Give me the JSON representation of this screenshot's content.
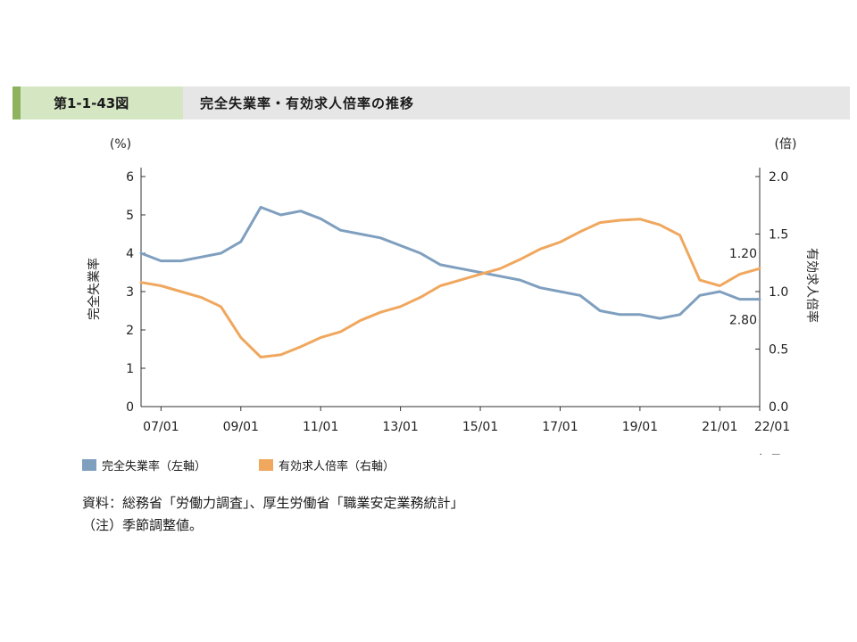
{
  "header": {
    "figure_number": "第1-1-43図",
    "title": "完全失業率・有効求人倍率の推移"
  },
  "notes": {
    "source": "資料：総務省「労働力調査」、厚生労働省「職業安定業務統計」",
    "remark": "（注）季節調整値。"
  },
  "chart_data": {
    "type": "line",
    "left_axis": {
      "unit": "(%)",
      "label": "完全失業率",
      "ticks": [
        0,
        1,
        2,
        3,
        4,
        5,
        6
      ],
      "tick_labels": [
        "0",
        "1",
        "2",
        "3",
        "4",
        "5",
        "6"
      ],
      "range": [
        0,
        6
      ]
    },
    "right_axis": {
      "unit": "(倍)",
      "label": "有効求人倍率",
      "ticks": [
        0,
        0.5,
        1,
        1.5,
        2
      ],
      "tick_labels": [
        "0.0",
        "0.5",
        "1.0",
        "1.5",
        "2.0"
      ],
      "range": [
        0,
        2
      ]
    },
    "x_axis": {
      "unit": "(年月)",
      "range": [
        "2006/07",
        "2022/01"
      ],
      "ticks": [
        "07/01",
        "09/01",
        "11/01",
        "13/01",
        "15/01",
        "17/01",
        "19/01",
        "21/01",
        "22/01"
      ]
    },
    "grid": false,
    "legend_position": "bottom-left",
    "series": [
      {
        "name": "完全失業率（左軸）",
        "axis": "left",
        "color": "#7f9fbf",
        "end_label": "2.80",
        "x": [
          "2006/07",
          "2007/01",
          "2007/07",
          "2008/01",
          "2008/07",
          "2009/01",
          "2009/07",
          "2010/01",
          "2010/07",
          "2011/01",
          "2011/07",
          "2012/01",
          "2012/07",
          "2013/01",
          "2013/07",
          "2014/01",
          "2014/07",
          "2015/01",
          "2015/07",
          "2016/01",
          "2016/07",
          "2017/01",
          "2017/07",
          "2018/01",
          "2018/07",
          "2019/01",
          "2019/07",
          "2020/01",
          "2020/07",
          "2021/01",
          "2021/07",
          "2022/01"
        ],
        "values": [
          4.0,
          3.8,
          3.8,
          3.9,
          4.0,
          4.3,
          5.2,
          5.0,
          5.1,
          4.9,
          4.6,
          4.5,
          4.4,
          4.2,
          4.0,
          3.7,
          3.6,
          3.5,
          3.4,
          3.3,
          3.1,
          3.0,
          2.9,
          2.5,
          2.4,
          2.4,
          2.3,
          2.4,
          2.9,
          3.0,
          2.8,
          2.8
        ]
      },
      {
        "name": "有効求人倍率（右軸）",
        "axis": "right",
        "color": "#f0a75e",
        "end_label": "1.20",
        "x": [
          "2006/07",
          "2007/01",
          "2007/07",
          "2008/01",
          "2008/07",
          "2009/01",
          "2009/07",
          "2010/01",
          "2010/07",
          "2011/01",
          "2011/07",
          "2012/01",
          "2012/07",
          "2013/01",
          "2013/07",
          "2014/01",
          "2014/07",
          "2015/01",
          "2015/07",
          "2016/01",
          "2016/07",
          "2017/01",
          "2017/07",
          "2018/01",
          "2018/07",
          "2019/01",
          "2019/07",
          "2020/01",
          "2020/07",
          "2021/01",
          "2021/07",
          "2022/01"
        ],
        "values": [
          1.08,
          1.05,
          1.0,
          0.95,
          0.87,
          0.6,
          0.43,
          0.45,
          0.52,
          0.6,
          0.65,
          0.75,
          0.82,
          0.87,
          0.95,
          1.05,
          1.1,
          1.15,
          1.2,
          1.28,
          1.37,
          1.43,
          1.52,
          1.6,
          1.62,
          1.63,
          1.58,
          1.49,
          1.1,
          1.05,
          1.15,
          1.2
        ]
      }
    ]
  }
}
